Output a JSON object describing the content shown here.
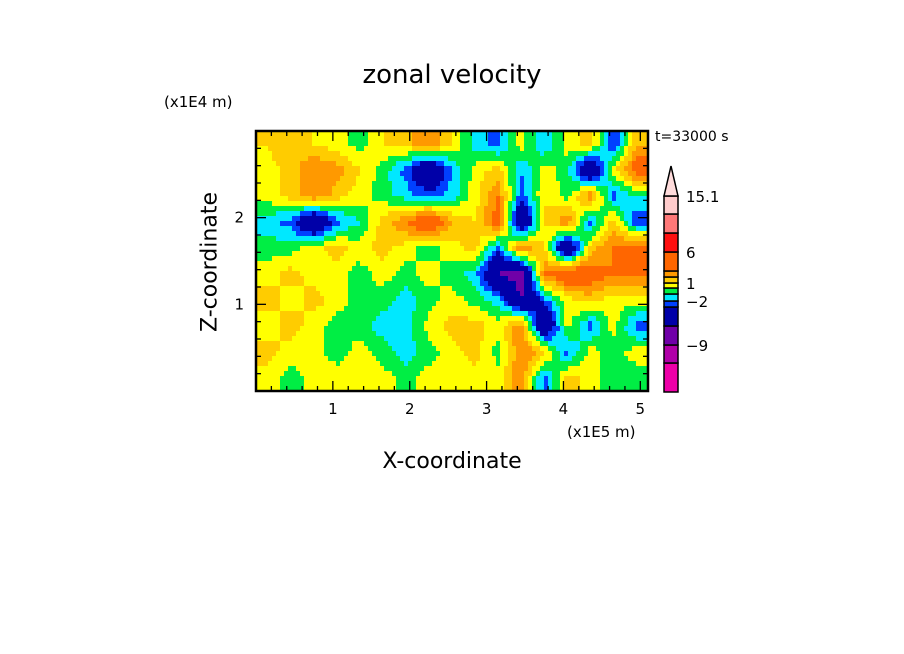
{
  "chart_data": {
    "type": "heatmap",
    "subtype": "filled-contour",
    "title": "zonal velocity",
    "xlabel": "X-coordinate",
    "ylabel": "Z-coordinate",
    "x_unit": "(x1E5 m)",
    "y_unit": "(x1E4 m)",
    "time_label": "t=33000 s",
    "xlim": [
      0,
      5.1
    ],
    "ylim": [
      0,
      3.0
    ],
    "x_ticks": [
      1,
      2,
      3,
      4,
      5
    ],
    "x_tick_labels": [
      "1",
      "2",
      "3",
      "4",
      "5"
    ],
    "y_ticks": [
      1,
      2
    ],
    "y_tick_labels": [
      "1",
      "2"
    ],
    "grid_x": [
      0.15,
      0.45,
      0.75,
      1.05,
      1.35,
      1.65,
      1.95,
      2.25,
      2.55,
      2.85,
      3.15,
      3.45,
      3.75,
      4.05,
      4.35,
      4.65,
      4.95
    ],
    "grid_z": [
      2.85,
      2.55,
      2.25,
      1.95,
      1.65,
      1.35,
      1.05,
      0.75,
      0.45,
      0.15
    ],
    "values": [
      [
        1,
        2,
        1,
        0.5,
        -0.5,
        1,
        1.5,
        3,
        1,
        -1.5,
        -2.5,
        0.5,
        -2,
        0.5,
        1.5,
        -3,
        2
      ],
      [
        0.5,
        1.5,
        3,
        2.5,
        1,
        -0.5,
        -2.5,
        -6,
        -2,
        0.5,
        1.5,
        -2,
        0.5,
        -0.5,
        -6,
        0.5,
        4
      ],
      [
        0.5,
        1.5,
        3,
        1.5,
        0.5,
        -0.5,
        -1.5,
        -2.5,
        -1.5,
        0.5,
        3,
        -2.5,
        1,
        -0.5,
        3,
        -2.5,
        -1
      ],
      [
        -1.5,
        -2.5,
        -6,
        -2.5,
        -1,
        1.5,
        3,
        5,
        2,
        1,
        4,
        -6,
        1,
        3,
        -2.5,
        1.5,
        -3
      ],
      [
        -0.5,
        -0.5,
        0.5,
        1.5,
        0.5,
        1.5,
        0.5,
        -0.5,
        0.5,
        1.5,
        -2.5,
        3,
        1,
        -6,
        1.5,
        3,
        4
      ],
      [
        0.5,
        1.5,
        0.5,
        0.5,
        -0.5,
        0.5,
        -0.5,
        0.5,
        -0.5,
        -1.5,
        -6,
        -7,
        3,
        5,
        4,
        3,
        3
      ],
      [
        1.5,
        0.5,
        1.5,
        0.5,
        -0.5,
        -0.5,
        -1.5,
        -0.5,
        0.5,
        -0.5,
        -1.5,
        -6,
        -2.5,
        0.5,
        1.5,
        0.5,
        0.5
      ],
      [
        0.5,
        1.5,
        0.5,
        -0.5,
        -0.5,
        -1.5,
        -1.5,
        0.5,
        1.5,
        1.5,
        0.5,
        3,
        -6,
        0.5,
        -2.5,
        0.5,
        -2.5
      ],
      [
        1.5,
        0.5,
        0.5,
        -0.5,
        0.5,
        -0.5,
        -1.5,
        -0.5,
        0.5,
        1.5,
        -0.5,
        3,
        1.5,
        -2.5,
        0.5,
        -0.5,
        0.5
      ],
      [
        0.5,
        -0.5,
        0.5,
        0.5,
        0.5,
        0.5,
        -0.5,
        0.5,
        0.5,
        0.5,
        0.5,
        3,
        -2.5,
        1.5,
        0.5,
        -0.5,
        -0.5
      ]
    ],
    "levels": [
      -12,
      -9,
      -6,
      -3,
      -2,
      -1,
      0,
      1,
      2,
      3,
      6,
      9,
      12,
      15.1
    ],
    "colors": [
      "#ee00a8",
      "#b000a8",
      "#7000a8",
      "#0000a8",
      "#0040ff",
      "#00e8ff",
      "#00ee44",
      "#ffff00",
      "#ffcc00",
      "#ff9900",
      "#ff6600",
      "#ff1010",
      "#ff7878",
      "#ffcccc",
      "#ffdcdc"
    ],
    "colorbar_labels": [
      {
        "value": 15.1,
        "text": "15.1"
      },
      {
        "value": 6,
        "text": "6"
      },
      {
        "value": 1,
        "text": "1"
      },
      {
        "value": -2,
        "text": "-2"
      },
      {
        "value": -9,
        "text": "-9"
      }
    ],
    "legend_placement": "right"
  }
}
